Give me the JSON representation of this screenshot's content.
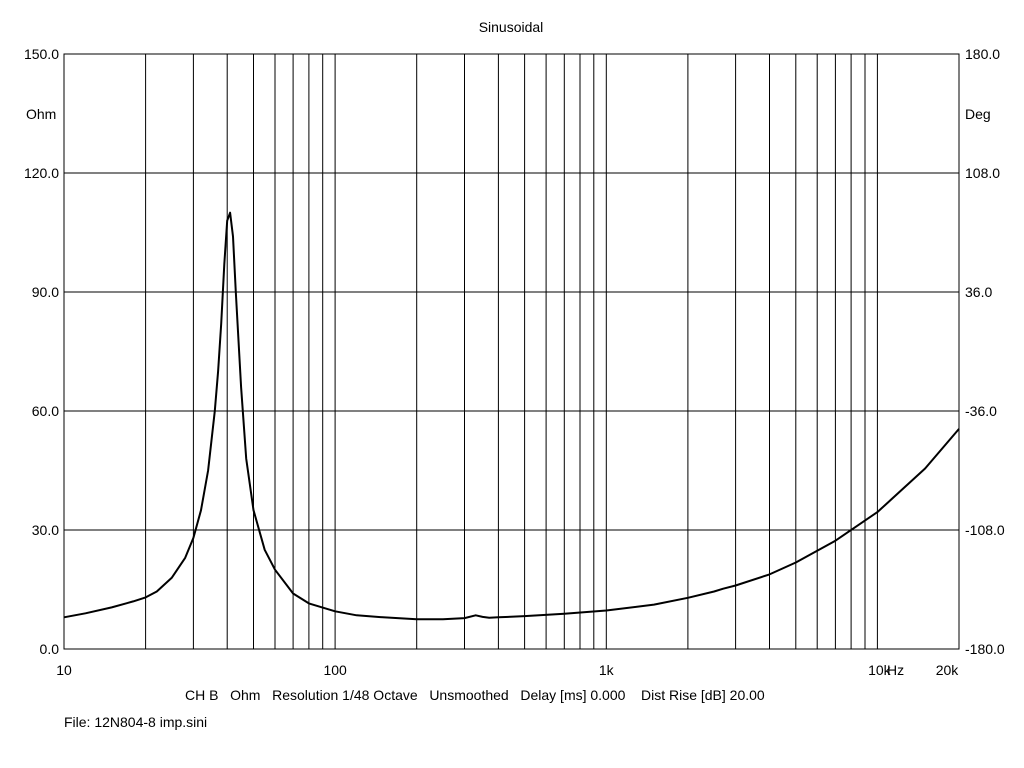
{
  "chart_data": {
    "type": "line",
    "title": "Sinusoidal",
    "x_scale": "log",
    "xlim": [
      10,
      20000
    ],
    "ylim": [
      0,
      150
    ],
    "ylim_right": [
      -180,
      180
    ],
    "left_unit": "Ohm",
    "right_unit": "Deg",
    "grid": true,
    "y_ticks": [
      "0.0",
      "30.0",
      "60.0",
      "90.0",
      "120.0",
      "150.0"
    ],
    "y_ticks_right": [
      "-180.0",
      "-108.0",
      "-36.0",
      "36.0",
      "108.0",
      "180.0"
    ],
    "x_tick_labels": [
      "10",
      "100",
      "1k",
      "10k",
      "20k"
    ],
    "x_unit": "Hz",
    "series": [
      {
        "x": [
          10,
          12,
          15,
          18,
          20,
          22,
          25,
          28,
          30,
          32,
          34,
          36,
          37,
          38,
          39,
          40,
          41,
          42,
          43,
          45,
          47,
          50,
          55,
          60,
          70,
          80,
          100,
          120,
          150,
          200,
          250,
          300,
          330,
          350,
          370,
          400,
          500,
          700,
          1000,
          1500,
          2000,
          2500,
          2700,
          3000,
          4000,
          5000,
          7000,
          10000,
          15000,
          20000
        ],
        "y": [
          8,
          9,
          10.5,
          12,
          13,
          14.5,
          18,
          23,
          28,
          35,
          45,
          60,
          70,
          82,
          97,
          108,
          110,
          104,
          90,
          66,
          48,
          35,
          25,
          20,
          14,
          11.5,
          9.5,
          8.5,
          8,
          7.5,
          7.5,
          7.8,
          8.5,
          8.1,
          7.9,
          8.0,
          8.3,
          8.9,
          9.7,
          11.2,
          12.9,
          14.5,
          15.2,
          16.0,
          18.8,
          21.8,
          27.3,
          34.5,
          45.5,
          55.5
        ]
      }
    ]
  },
  "footer": {
    "info": "CH B   Ohm   Resolution 1/48 Octave   Unsmoothed   Delay [ms] 0.000    Dist Rise [dB] 20.00",
    "file": "File: 12N804-8 imp.sini"
  }
}
